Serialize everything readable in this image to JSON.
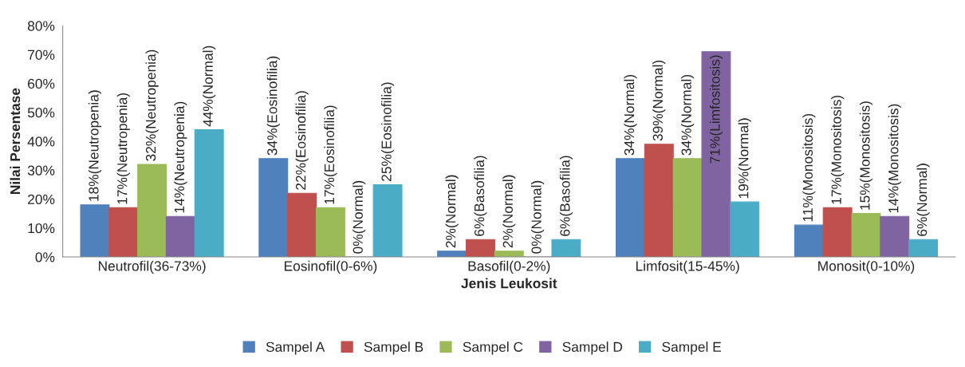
{
  "chart_data": {
    "type": "bar",
    "xlabel": "Jenis Leukosit",
    "ylabel": "Nilai Persentase",
    "categories": [
      "Neutrofil(36-73%)",
      "Eosinofil(0-6%)",
      "Basofil(0-2%)",
      "Limfosit(15-45%)",
      "Monosit(0-10%)"
    ],
    "series": [
      {
        "name": "Sampel A",
        "color": "#4f81bd",
        "values": [
          18,
          34,
          2,
          34,
          11
        ],
        "value_labels": [
          "18%(Neutropenia)",
          "34%(Eosinofilia)",
          "2%(Normal)",
          "34%(Normal)",
          "11%(Monositosis)"
        ]
      },
      {
        "name": "Sampel B",
        "color": "#c0504d",
        "values": [
          17,
          22,
          6,
          39,
          17
        ],
        "value_labels": [
          "17%(Neutropenia)",
          "22%(Eosinofilia)",
          "6%(Basofilia)",
          "39%(Normal)",
          "17%(Monositosis)"
        ]
      },
      {
        "name": "Sampel C",
        "color": "#9bbb59",
        "values": [
          32,
          17,
          2,
          34,
          15
        ],
        "value_labels": [
          "32%(Neutropenia)",
          "17%(Eosinofilia)",
          "2%(Normal)",
          "34%(Normal)",
          "15%(Monositosis)"
        ]
      },
      {
        "name": "Sampel D",
        "color": "#8064a2",
        "values": [
          14,
          0,
          0,
          71,
          14
        ],
        "value_labels": [
          "14%(Neutropenia)",
          "0%(Normal)",
          "0%(Normal)",
          "71%(Limfositosis)",
          "14%(Monositosis)"
        ]
      },
      {
        "name": "Sampel E",
        "color": "#4bacc6",
        "values": [
          44,
          25,
          6,
          19,
          6
        ],
        "value_labels": [
          "44%(Normal)",
          "25%(Eosinofilia)",
          "6%(Basofilia)",
          "19%(Normal)",
          "6%(Normal)"
        ]
      }
    ],
    "ylim": [
      0,
      80
    ],
    "yticks": [
      {
        "value": 0,
        "label": "0%"
      },
      {
        "value": 10,
        "label": "10%"
      },
      {
        "value": 20,
        "label": "20%"
      },
      {
        "value": 30,
        "label": "30%"
      },
      {
        "value": 40,
        "label": "40%"
      },
      {
        "value": 50,
        "label": "50%"
      },
      {
        "value": 60,
        "label": "60%"
      },
      {
        "value": 70,
        "label": "70%"
      },
      {
        "value": 80,
        "label": "80%"
      }
    ],
    "grid": false,
    "legend": "bottom"
  }
}
